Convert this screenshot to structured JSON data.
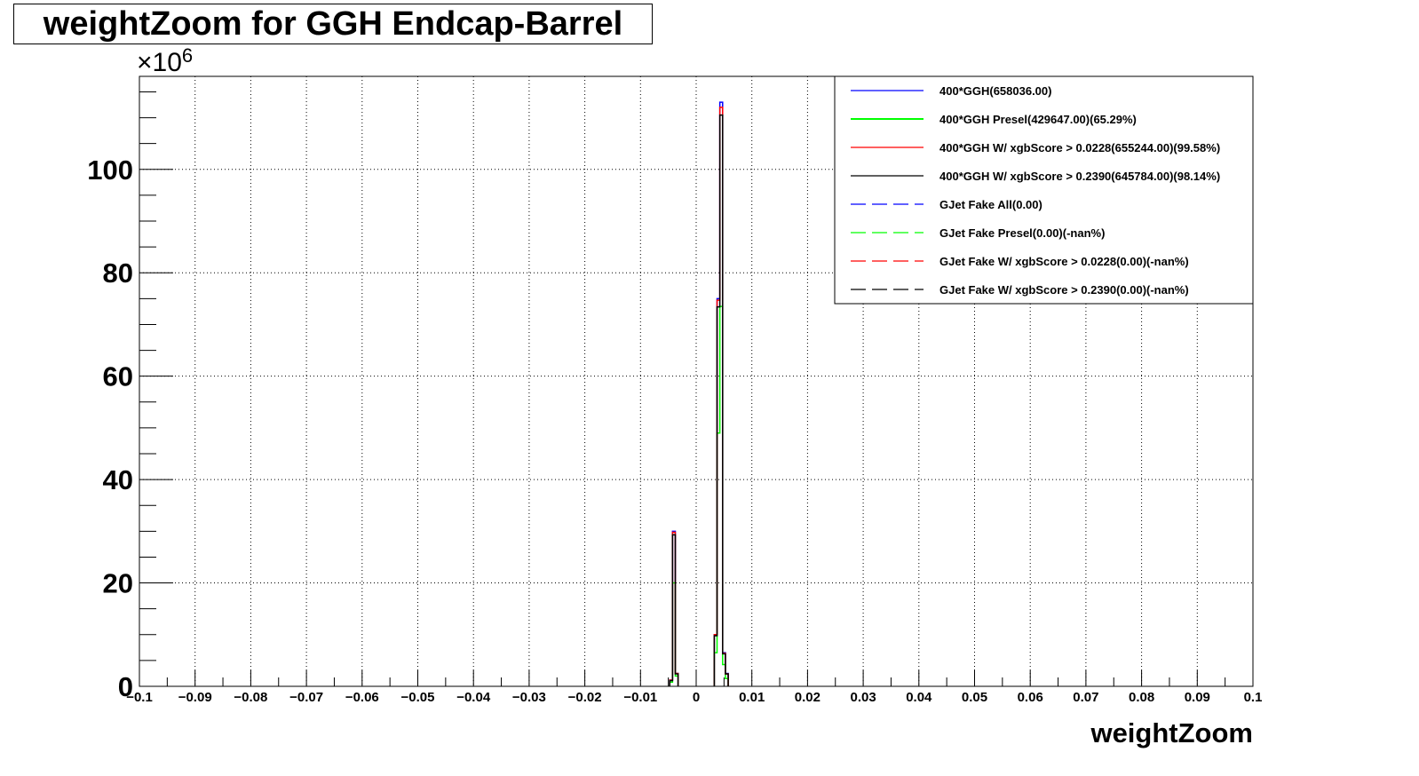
{
  "chart_data": {
    "type": "histogram",
    "title": "weightZoom for GGH Endcap-Barrel",
    "xlabel": "weightZoom",
    "ylabel": "",
    "y_multiplier": "×10",
    "y_exponent": "6",
    "xlim": [
      -0.1,
      0.1
    ],
    "ylim": [
      0,
      118
    ],
    "grid": true,
    "legend_position": "top-right",
    "x_ticks": [
      -0.1,
      -0.09,
      -0.08,
      -0.07,
      -0.06,
      -0.05,
      -0.04,
      -0.03,
      -0.02,
      -0.01,
      0,
      0.01,
      0.02,
      0.03,
      0.04,
      0.05,
      0.06,
      0.07,
      0.08,
      0.09,
      0.1
    ],
    "x_tick_labels": [
      "−0.1",
      "−0.09",
      "−0.08",
      "−0.07",
      "−0.06",
      "−0.05",
      "−0.04",
      "−0.03",
      "−0.02",
      "−0.01",
      "0",
      "0.01",
      "0.02",
      "0.03",
      "0.04",
      "0.05",
      "0.06",
      "0.07",
      "0.08",
      "0.09",
      "0.1"
    ],
    "y_ticks": [
      0,
      20,
      40,
      60,
      80,
      100
    ],
    "y_tick_labels": [
      "0",
      "20",
      "40",
      "60",
      "80",
      "100"
    ],
    "series": [
      {
        "name": "400*GGH(658036.00)",
        "color": "#0000ff",
        "style": "solid",
        "bins": [
          [
            -0.0045,
            1.2
          ],
          [
            -0.004,
            30.0
          ],
          [
            -0.0035,
            2.5
          ],
          [
            0.0035,
            10.0
          ],
          [
            0.004,
            75.0
          ],
          [
            0.0045,
            113.0
          ],
          [
            0.005,
            6.5
          ],
          [
            0.0055,
            2.5
          ]
        ]
      },
      {
        "name": "400*GGH Presel(429647.00)(65.29%)",
        "color": "#00ff00",
        "style": "solid",
        "bins": [
          [
            -0.0045,
            0.8
          ],
          [
            -0.004,
            20.0
          ],
          [
            -0.0035,
            2.0
          ],
          [
            0.0035,
            6.5
          ],
          [
            0.004,
            49.0
          ],
          [
            0.0045,
            73.5
          ],
          [
            0.005,
            4.2
          ],
          [
            0.0055,
            1.5
          ]
        ]
      },
      {
        "name": "400*GGH W/ xgbScore > 0.0228(655244.00)(99.58%)",
        "color": "#ff0000",
        "style": "solid",
        "bins": [
          [
            -0.0045,
            1.2
          ],
          [
            -0.004,
            29.8
          ],
          [
            -0.0035,
            2.5
          ],
          [
            0.0035,
            10.0
          ],
          [
            0.004,
            74.7
          ],
          [
            0.0045,
            112.0
          ],
          [
            0.005,
            6.4
          ],
          [
            0.0055,
            2.4
          ]
        ]
      },
      {
        "name": "400*GGH W/ xgbScore > 0.2390(645784.00)(98.14%)",
        "color": "#000000",
        "style": "solid",
        "bins": [
          [
            -0.0045,
            1.1
          ],
          [
            -0.004,
            29.3
          ],
          [
            -0.0035,
            2.4
          ],
          [
            0.0035,
            9.8
          ],
          [
            0.004,
            73.4
          ],
          [
            0.0045,
            110.5
          ],
          [
            0.005,
            6.3
          ],
          [
            0.0055,
            2.4
          ]
        ]
      },
      {
        "name": "GJet Fake All(0.00)",
        "color": "#0000ff",
        "style": "dashed",
        "bins": []
      },
      {
        "name": "GJet Fake Presel(0.00)(-nan%)",
        "color": "#00ff00",
        "style": "dashed",
        "bins": []
      },
      {
        "name": "GJet Fake W/ xgbScore > 0.0228(0.00)(-nan%)",
        "color": "#ff0000",
        "style": "dashed",
        "bins": []
      },
      {
        "name": "GJet Fake W/ xgbScore > 0.2390(0.00)(-nan%)",
        "color": "#000000",
        "style": "dashed",
        "bins": []
      }
    ]
  }
}
